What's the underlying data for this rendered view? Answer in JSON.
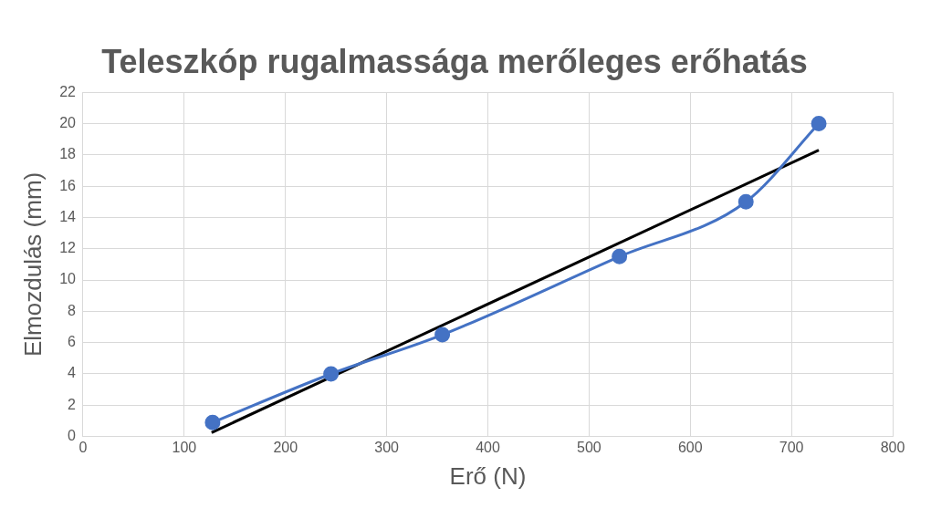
{
  "chart_data": {
    "type": "line",
    "title": "Teleszkóp rugalmassága merőleges erőhatás",
    "xlabel": "Erő (N)",
    "ylabel": "Elmozdulás (mm)",
    "xlim": [
      0,
      800
    ],
    "xticks": [
      0,
      100,
      200,
      300,
      400,
      500,
      600,
      700,
      800
    ],
    "ylim": [
      0,
      22
    ],
    "yticks": [
      0,
      2,
      4,
      6,
      8,
      10,
      12,
      14,
      16,
      18,
      20,
      22
    ],
    "grid": true,
    "legend": false,
    "series": [
      {
        "type": "line",
        "color": "#4472c4",
        "marker": "circle",
        "x": [
          128,
          245,
          355,
          530,
          655,
          727
        ],
        "values": [
          0.9,
          4,
          6.5,
          11.5,
          15,
          20
        ]
      },
      {
        "type": "line",
        "color": "#000000",
        "marker": "none",
        "x": [
          127,
          727
        ],
        "values": [
          0.25,
          18.3
        ]
      }
    ]
  }
}
